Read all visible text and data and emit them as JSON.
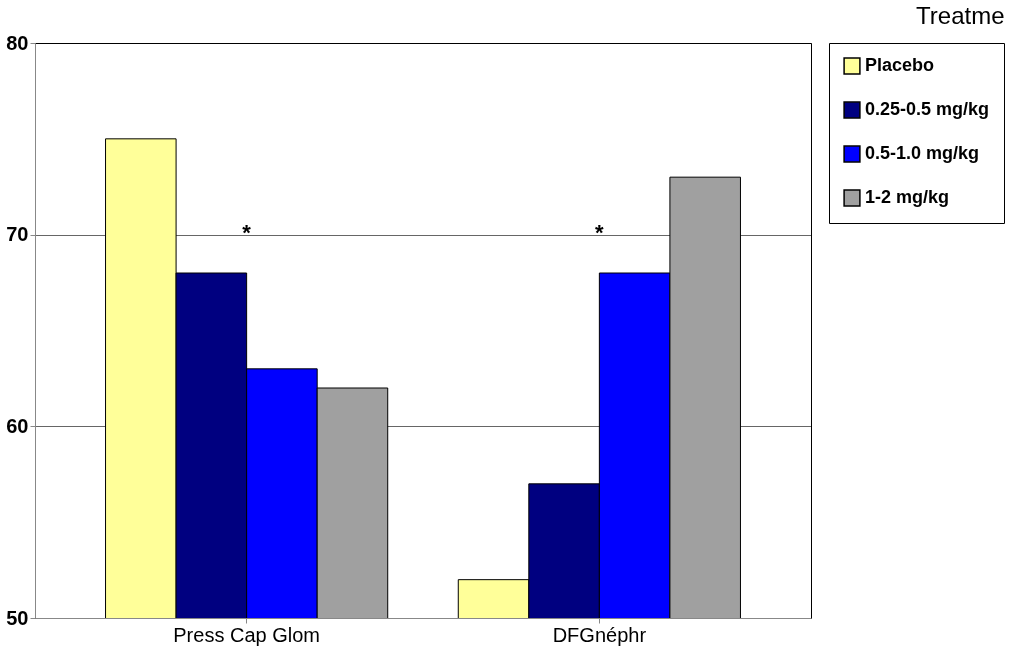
{
  "chart_data": {
    "type": "bar",
    "title": "Treatme",
    "categories": [
      "Press Cap Glom",
      "DFGnéphr"
    ],
    "series": [
      {
        "name": "Placebo",
        "color": "#ffff99",
        "values": [
          75,
          52
        ]
      },
      {
        "name": "0.25-0.5 mg/kg",
        "color": "#000080",
        "values": [
          68,
          57
        ]
      },
      {
        "name": "0.5-1.0 mg/kg",
        "color": "#0000ff",
        "values": [
          63,
          68
        ]
      },
      {
        "name": "1-2 mg/kg",
        "color": "#a0a0a0",
        "values": [
          62,
          73
        ]
      }
    ],
    "ylim": [
      50,
      80
    ],
    "yticks": [
      50,
      60,
      70,
      80
    ],
    "grid": "y",
    "legend": "right",
    "annotations": [
      "*",
      "*"
    ]
  }
}
